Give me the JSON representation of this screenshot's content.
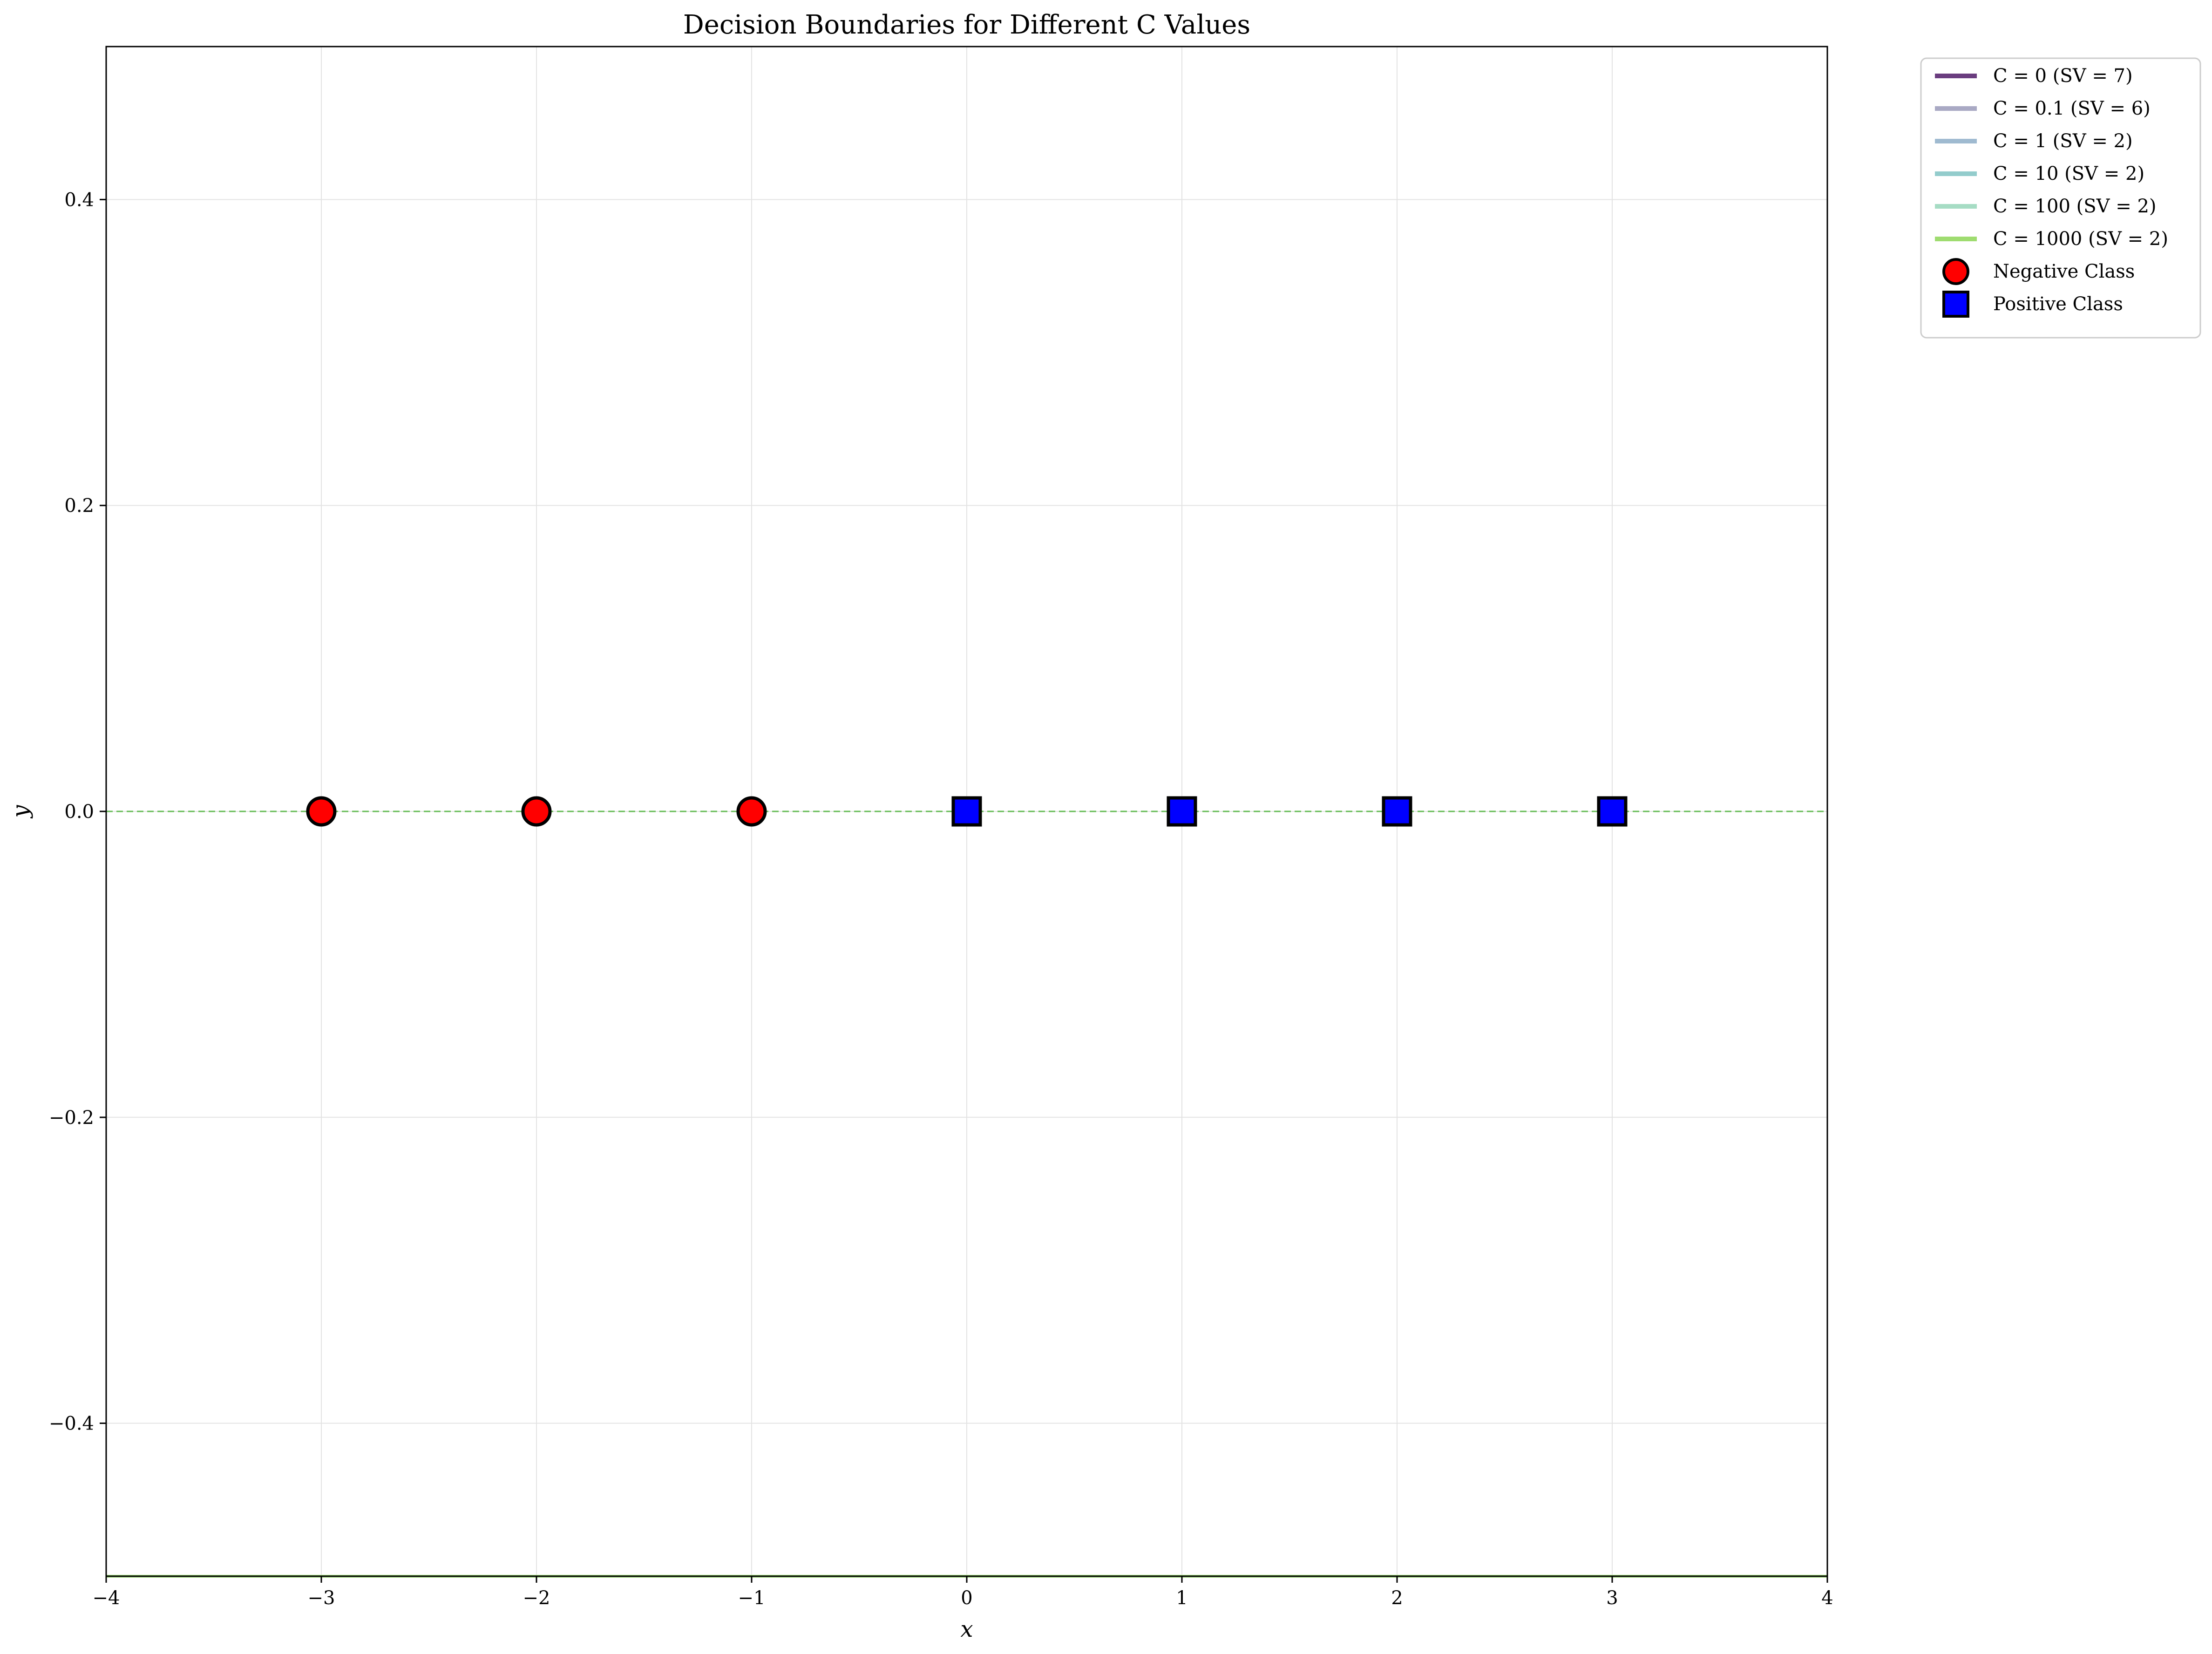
{
  "chart_data": {
    "type": "scatter",
    "title": "Decision Boundaries for Different C Values",
    "xlabel": "x",
    "ylabel": "y",
    "xlim": [
      -4,
      4
    ],
    "ylim": [
      -0.5,
      0.5
    ],
    "xticks": [
      -4,
      -3,
      -2,
      -1,
      0,
      1,
      2,
      3,
      4
    ],
    "xtick_labels": [
      "−4",
      "−3",
      "−2",
      "−1",
      "0",
      "1",
      "2",
      "3",
      "4"
    ],
    "yticks": [
      -0.4,
      -0.2,
      0.0,
      0.2,
      0.4
    ],
    "ytick_labels": [
      "−0.4",
      "−0.2",
      "0.0",
      "0.2",
      "0.4"
    ],
    "grid": true,
    "legend_position": "outside-top-right",
    "reference_line": {
      "y": 0,
      "style": "dashed",
      "color": "#66bb55"
    },
    "boundaries": [
      {
        "name": "C = 0 (SV = 7)",
        "color": "#6a3d7f",
        "y": -0.5
      },
      {
        "name": "C = 0.1 (SV = 6)",
        "color": "#a9a9c4",
        "y": -0.5
      },
      {
        "name": "C = 1 (SV = 2)",
        "color": "#9fbad0",
        "y": -0.5
      },
      {
        "name": "C = 10 (SV = 2)",
        "color": "#93cccc",
        "y": -0.5
      },
      {
        "name": "C = 100 (SV = 2)",
        "color": "#a6dcc4",
        "y": -0.5
      },
      {
        "name": "C = 1000 (SV = 2)",
        "color": "#9fdc70",
        "y": -0.5
      }
    ],
    "series": [
      {
        "name": "Negative Class",
        "marker": "circle",
        "color": "#ff0000",
        "x": [
          -3,
          -2,
          -1
        ],
        "y": [
          0,
          0,
          0
        ]
      },
      {
        "name": "Positive Class",
        "marker": "square",
        "color": "#0000ff",
        "x": [
          0,
          1,
          2,
          3
        ],
        "y": [
          0,
          0,
          0,
          0
        ]
      }
    ]
  }
}
